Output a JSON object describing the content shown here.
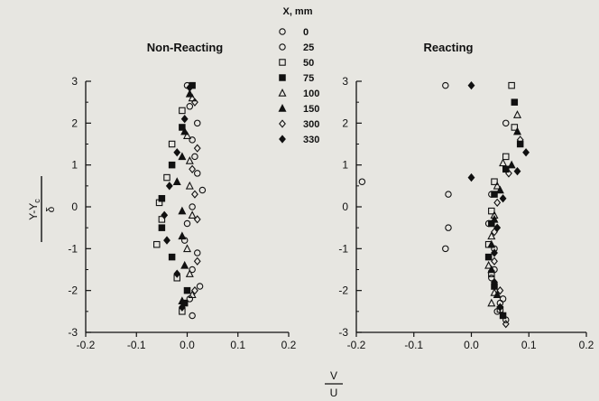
{
  "legend": {
    "title": "X, mm",
    "entries": [
      {
        "label": "0",
        "marker": "circle-open"
      },
      {
        "label": "25",
        "marker": "circle-open"
      },
      {
        "label": "50",
        "marker": "square-open"
      },
      {
        "label": "75",
        "marker": "square-filled"
      },
      {
        "label": "100",
        "marker": "triangle-open"
      },
      {
        "label": "150",
        "marker": "triangle-filled"
      },
      {
        "label": "300",
        "marker": "diamond-open"
      },
      {
        "label": "330",
        "marker": "diamond-filled"
      }
    ]
  },
  "ylabel_num": "Y-Y",
  "ylabel_sub": "c",
  "ylabel_den": "δ",
  "xlabel_num": "V",
  "xlabel_den": "U",
  "chart_data": [
    {
      "type": "scatter",
      "title": "Non-Reacting",
      "xlim": [
        -0.2,
        0.2
      ],
      "ylim": [
        -3,
        3
      ],
      "xticks": [
        "-0.2",
        "-0.1",
        "0.0",
        "0.1",
        "0.2"
      ],
      "yticks": [
        "-3",
        "-2",
        "-1",
        "0",
        "1",
        "2",
        "3"
      ],
      "series": [
        {
          "name": "0",
          "marker": "circle-open",
          "points": [
            [
              0.005,
              2.4
            ],
            [
              0.01,
              1.6
            ],
            [
              0.02,
              0.8
            ],
            [
              0.01,
              0.0
            ],
            [
              -0.005,
              -0.8
            ],
            [
              0.01,
              -1.5
            ],
            [
              0.005,
              -2.2
            ],
            [
              0.0,
              2.9
            ]
          ]
        },
        {
          "name": "25",
          "marker": "circle-open",
          "points": [
            [
              0.02,
              2.0
            ],
            [
              0.015,
              1.2
            ],
            [
              0.03,
              0.4
            ],
            [
              0.0,
              -0.4
            ],
            [
              0.02,
              -1.1
            ],
            [
              0.025,
              -1.9
            ],
            [
              0.01,
              -2.6
            ]
          ]
        },
        {
          "name": "50",
          "marker": "square-open",
          "points": [
            [
              -0.01,
              2.3
            ],
            [
              -0.03,
              1.5
            ],
            [
              -0.04,
              0.7
            ],
            [
              -0.055,
              0.1
            ],
            [
              -0.05,
              -0.3
            ],
            [
              -0.06,
              -0.9
            ],
            [
              -0.02,
              -1.7
            ],
            [
              -0.01,
              -2.5
            ]
          ]
        },
        {
          "name": "75",
          "marker": "square-filled",
          "points": [
            [
              0.01,
              2.9
            ],
            [
              -0.01,
              1.9
            ],
            [
              -0.03,
              1.0
            ],
            [
              -0.05,
              0.2
            ],
            [
              -0.05,
              -0.5
            ],
            [
              -0.03,
              -1.2
            ],
            [
              0.0,
              -2.0
            ],
            [
              -0.005,
              -2.3
            ]
          ]
        },
        {
          "name": "100",
          "marker": "triangle-open",
          "points": [
            [
              0.01,
              2.6
            ],
            [
              0.0,
              1.7
            ],
            [
              0.005,
              1.1
            ],
            [
              0.005,
              0.5
            ],
            [
              0.01,
              -0.2
            ],
            [
              0.0,
              -1.0
            ],
            [
              0.005,
              -1.6
            ],
            [
              0.01,
              -2.1
            ]
          ]
        },
        {
          "name": "150",
          "marker": "triangle-filled",
          "points": [
            [
              0.005,
              2.7
            ],
            [
              -0.005,
              1.8
            ],
            [
              -0.01,
              1.2
            ],
            [
              -0.02,
              0.6
            ],
            [
              -0.01,
              -0.1
            ],
            [
              -0.01,
              -0.7
            ],
            [
              -0.005,
              -1.4
            ],
            [
              -0.01,
              -2.25
            ]
          ]
        },
        {
          "name": "300",
          "marker": "diamond-open",
          "points": [
            [
              0.015,
              2.5
            ],
            [
              0.02,
              1.4
            ],
            [
              0.01,
              0.9
            ],
            [
              0.015,
              0.3
            ],
            [
              0.02,
              -0.3
            ],
            [
              0.02,
              -1.3
            ],
            [
              0.015,
              -2.0
            ]
          ]
        },
        {
          "name": "330",
          "marker": "diamond-filled",
          "points": [
            [
              0.005,
              2.85
            ],
            [
              -0.005,
              2.1
            ],
            [
              -0.02,
              1.3
            ],
            [
              -0.035,
              0.5
            ],
            [
              -0.045,
              -0.2
            ],
            [
              -0.04,
              -0.8
            ],
            [
              -0.02,
              -1.6
            ],
            [
              -0.01,
              -2.4
            ]
          ]
        }
      ]
    },
    {
      "type": "scatter",
      "title": "Reacting",
      "xlim": [
        -0.2,
        0.2
      ],
      "ylim": [
        -3,
        3
      ],
      "xticks": [
        "-0.2",
        "-0.1",
        "0.0",
        "0.1",
        "0.2"
      ],
      "yticks": [
        "-3",
        "-2",
        "-1",
        "0",
        "1",
        "2",
        "3"
      ],
      "series": [
        {
          "name": "0",
          "marker": "circle-open",
          "points": [
            [
              -0.045,
              2.9
            ],
            [
              -0.19,
              0.6
            ],
            [
              -0.04,
              0.3
            ],
            [
              -0.04,
              -0.5
            ],
            [
              -0.045,
              -1.0
            ],
            [
              0.04,
              -1.5
            ],
            [
              0.05,
              -2.3
            ],
            [
              0.06,
              -2.7
            ]
          ]
        },
        {
          "name": "25",
          "marker": "circle-open",
          "points": [
            [
              0.06,
              2.0
            ],
            [
              0.035,
              0.3
            ],
            [
              0.03,
              -0.4
            ],
            [
              0.04,
              -1.0
            ],
            [
              0.035,
              -1.7
            ],
            [
              0.055,
              -2.2
            ],
            [
              0.045,
              -2.5
            ]
          ]
        },
        {
          "name": "50",
          "marker": "square-open",
          "points": [
            [
              0.07,
              2.9
            ],
            [
              0.075,
              1.9
            ],
            [
              0.06,
              1.2
            ],
            [
              0.04,
              0.6
            ],
            [
              0.035,
              -0.1
            ],
            [
              0.03,
              -0.9
            ],
            [
              0.035,
              -1.6
            ],
            [
              0.05,
              -2.45
            ]
          ]
        },
        {
          "name": "75",
          "marker": "square-filled",
          "points": [
            [
              0.075,
              2.5
            ],
            [
              0.085,
              1.5
            ],
            [
              0.06,
              0.9
            ],
            [
              0.04,
              0.3
            ],
            [
              0.035,
              -0.4
            ],
            [
              0.03,
              -1.2
            ],
            [
              0.04,
              -1.9
            ],
            [
              0.055,
              -2.6
            ]
          ]
        },
        {
          "name": "100",
          "marker": "triangle-open",
          "points": [
            [
              0.08,
              2.2
            ],
            [
              0.055,
              1.05
            ],
            [
              0.045,
              0.5
            ],
            [
              0.04,
              -0.2
            ],
            [
              0.035,
              -0.7
            ],
            [
              0.03,
              -1.4
            ],
            [
              0.04,
              -2.05
            ],
            [
              0.035,
              -2.3
            ]
          ]
        },
        {
          "name": "150",
          "marker": "triangle-filled",
          "points": [
            [
              0.08,
              1.8
            ],
            [
              0.07,
              1.0
            ],
            [
              0.05,
              0.4
            ],
            [
              0.04,
              -0.3
            ],
            [
              0.035,
              -0.9
            ],
            [
              0.035,
              -1.5
            ],
            [
              0.045,
              -2.1
            ]
          ]
        },
        {
          "name": "300",
          "marker": "diamond-open",
          "points": [
            [
              0.085,
              1.6
            ],
            [
              0.065,
              0.8
            ],
            [
              0.045,
              0.1
            ],
            [
              0.04,
              -0.6
            ],
            [
              0.04,
              -1.3
            ],
            [
              0.05,
              -2.0
            ],
            [
              0.06,
              -2.8
            ]
          ]
        },
        {
          "name": "330",
          "marker": "diamond-filled",
          "points": [
            [
              0.0,
              2.9
            ],
            [
              0.0,
              0.7
            ],
            [
              0.095,
              1.3
            ],
            [
              0.08,
              0.85
            ],
            [
              0.055,
              0.2
            ],
            [
              0.045,
              -0.5
            ],
            [
              0.04,
              -1.1
            ],
            [
              0.04,
              -1.8
            ],
            [
              0.05,
              -2.4
            ]
          ]
        }
      ]
    }
  ]
}
